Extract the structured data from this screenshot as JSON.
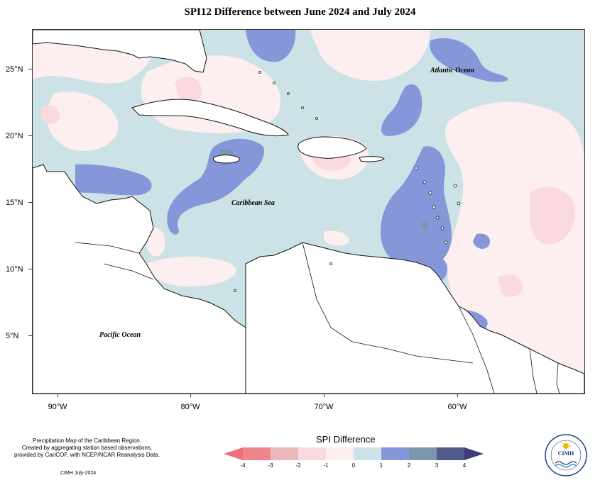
{
  "title": "SPI12 Difference between June 2024 and July 2024",
  "axes": {
    "lat_labels": [
      {
        "text": "25°N",
        "lat": 25
      },
      {
        "text": "20°N",
        "lat": 20
      },
      {
        "text": "15°N",
        "lat": 15
      },
      {
        "text": "10°N",
        "lat": 10
      },
      {
        "text": "5°N",
        "lat": 5
      }
    ],
    "lon_labels": [
      {
        "text": "90°W",
        "lon": -90
      },
      {
        "text": "80°W",
        "lon": -80
      },
      {
        "text": "70°W",
        "lon": -70
      },
      {
        "text": "60°W",
        "lon": -60
      }
    ]
  },
  "ocean_labels": {
    "atlantic": "Atlantic Ocean",
    "caribbean": "Caribbean Sea",
    "pacific": "Pacific Ocean"
  },
  "notes": {
    "line1": "Precipitation Map of the Caribbean Region.",
    "line2": "Created by aggregating station based observations,",
    "line3": "provided by CariCOF, with NCEP/NCAR Reanalysis Data."
  },
  "credit": "CIMH July-2024",
  "legend": {
    "title": "SPI Difference",
    "ticks": [
      "-4",
      "-3",
      "-2",
      "-1",
      "0",
      "1",
      "2",
      "3",
      "4"
    ],
    "colors": [
      "#f0868d",
      "#ebb8bb",
      "#fbdadf",
      "#fdeeef",
      "#cde2e6",
      "#8597d8",
      "#7b96ad",
      "#535a8c"
    ],
    "left_arrow_color": "#f06d7a",
    "right_arrow_color": "#3e3b7c"
  },
  "logo": {
    "name": "CIMH",
    "ring_text": "Caribbean Institute for Meteorology and Hydrology"
  }
}
